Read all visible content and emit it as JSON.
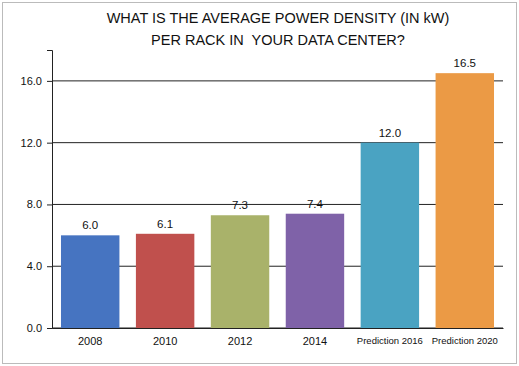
{
  "chart_data": {
    "type": "bar",
    "title": [
      "WHAT IS THE AVERAGE POWER DENSITY (IN kW)",
      "PER RACK IN  YOUR DATA CENTER?"
    ],
    "categories": [
      "2008",
      "2010",
      "2012",
      "2014",
      "Prediction 2016",
      "Prediction 2020"
    ],
    "values": [
      6.0,
      6.1,
      7.3,
      7.4,
      12.0,
      16.5
    ],
    "value_labels": [
      "6.0",
      "6.1",
      "7.3",
      "7.4",
      "12.0",
      "16.5"
    ],
    "colors": [
      "#4674c1",
      "#c0504d",
      "#a9b26a",
      "#7f62a8",
      "#4aa3c2",
      "#eb9a45"
    ],
    "ylim": [
      0,
      18
    ],
    "yticks": [
      {
        "value": 0,
        "label": "0.0"
      },
      {
        "value": 4,
        "label": "4.0"
      },
      {
        "value": 8,
        "label": "8.0"
      },
      {
        "value": 12,
        "label": "12.0"
      },
      {
        "value": 16,
        "label": "16.0"
      }
    ],
    "grid": true,
    "data_labels": true
  }
}
